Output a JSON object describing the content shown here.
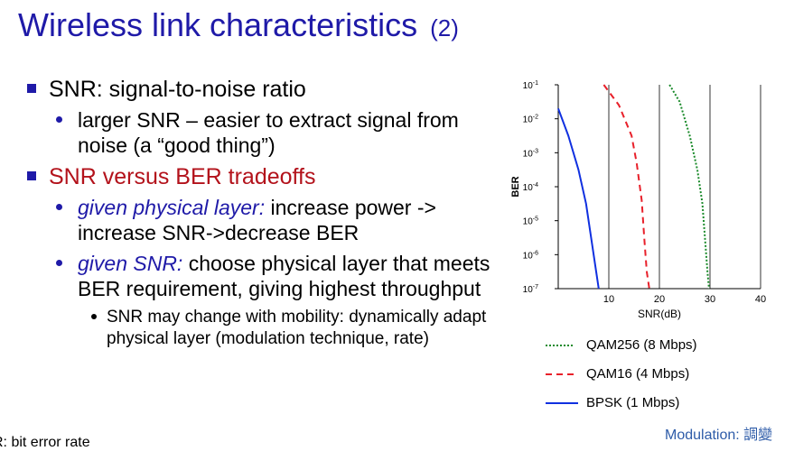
{
  "slide": {
    "title": "Wireless link characteristics",
    "title_suffix": "(2)",
    "bullets": [
      {
        "text": "SNR: signal-to-noise ratio",
        "color": "#000000"
      },
      {
        "sub": "larger SNR – easier to extract signal from noise (a “good thing”)"
      },
      {
        "text": "SNR versus BER tradeoffs",
        "color": "#b3121b"
      },
      {
        "sub_em": "given physical layer:",
        "sub_rest": " increase power -> increase SNR->decrease BER"
      },
      {
        "sub_em": "given SNR:",
        "sub_rest": " choose physical layer that meets BER requirement, giving highest throughput"
      },
      {
        "subsub": "SNR may change with mobility: dynamically adapt physical layer (modulation technique, rate)"
      }
    ],
    "footnote": "R: bit error rate",
    "modulation_note": "Modulation: 調變"
  },
  "colors": {
    "title": "#1f1aa8",
    "bullet": "#1f1aa8",
    "highlight": "#b3121b",
    "qam256": "#1a8a2a",
    "qam16": "#e8202a",
    "bpsk": "#1030e0",
    "note": "#2d5ba8"
  },
  "chart_data": {
    "type": "line",
    "xlabel": "SNR(dB)",
    "ylabel": "BER",
    "xlim": [
      0,
      40
    ],
    "ylim_exp": [
      -7,
      -1
    ],
    "log_y": true,
    "x_ticks": [
      10,
      20,
      30,
      40
    ],
    "y_tick_labels": [
      "10-1",
      "10-2",
      "10-3",
      "10-4",
      "10-5",
      "10-6",
      "10-7"
    ],
    "grid": true,
    "series": [
      {
        "name": "QAM256 (8 Mbps)",
        "style": "dotted",
        "color": "#1a8a2a",
        "points": [
          [
            22,
            -1
          ],
          [
            24,
            -1.5
          ],
          [
            26,
            -2.5
          ],
          [
            27.5,
            -3.5
          ],
          [
            28.5,
            -4.5
          ],
          [
            29,
            -5.5
          ],
          [
            29.5,
            -6.5
          ],
          [
            29.8,
            -7
          ]
        ]
      },
      {
        "name": "QAM16 (4 Mbps)",
        "style": "dashed",
        "color": "#e8202a",
        "points": [
          [
            9,
            -1
          ],
          [
            12,
            -1.6
          ],
          [
            14.5,
            -2.5
          ],
          [
            15.5,
            -3.3
          ],
          [
            16.5,
            -4.4
          ],
          [
            17,
            -5.5
          ],
          [
            17.5,
            -6.5
          ],
          [
            18,
            -7
          ]
        ]
      },
      {
        "name": "BPSK (1 Mbps)",
        "style": "solid",
        "color": "#1030e0",
        "points": [
          [
            0,
            -1.7
          ],
          [
            2,
            -2.5
          ],
          [
            4,
            -3.5
          ],
          [
            5.5,
            -4.5
          ],
          [
            6.5,
            -5.5
          ],
          [
            7.5,
            -6.5
          ],
          [
            8,
            -7
          ]
        ]
      }
    ]
  }
}
